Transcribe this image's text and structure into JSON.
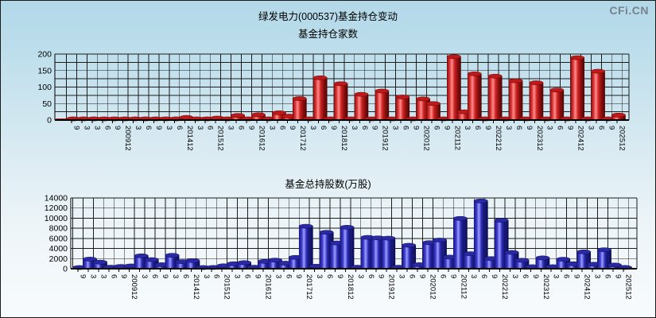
{
  "page": {
    "title": "绿发电力(000537)基金持仓变动",
    "logo": "CFi.CN"
  },
  "colors": {
    "red_bar": "#dd2222",
    "blue_bar": "#3333cc",
    "background_top": "#b2d8e8",
    "logo_gray": "#76838f",
    "grid": "#1c1c1c"
  },
  "x_labels": [
    "9",
    "3",
    "3",
    "6",
    "9",
    "200912",
    "3",
    "6",
    "9",
    "3",
    "6",
    "201412",
    "3",
    "6",
    "201512",
    "3",
    "6",
    "9",
    "201612",
    "3",
    "6",
    "9",
    "201712",
    "3",
    "6",
    "9",
    "201812",
    "3",
    "6",
    "9",
    "201912",
    "3",
    "6",
    "9",
    "202012",
    "6",
    "9",
    "202112",
    "3",
    "6",
    "9",
    "202212",
    "3",
    "6",
    "9",
    "202312",
    "3",
    "6",
    "9",
    "202412",
    "3",
    "6",
    "9",
    "202512"
  ],
  "chart_data": [
    {
      "type": "bar",
      "title": "基金持仓家数",
      "categories": [
        "9",
        "3",
        "3",
        "6",
        "9",
        "200912",
        "3",
        "6",
        "9",
        "3",
        "6",
        "201412",
        "3",
        "6",
        "201512",
        "3",
        "6",
        "9",
        "201612",
        "3",
        "6",
        "9",
        "201712",
        "3",
        "6",
        "9",
        "201812",
        "3",
        "6",
        "9",
        "201912",
        "3",
        "6",
        "9",
        "202012",
        "6",
        "9",
        "202112",
        "3",
        "6",
        "9",
        "202212",
        "3",
        "6",
        "9",
        "202312",
        "3",
        "6",
        "9",
        "202412",
        "3",
        "6",
        "9",
        "202512"
      ],
      "values": [
        1,
        1,
        1,
        1,
        1,
        2,
        1,
        2,
        1,
        1,
        2,
        8,
        1,
        2,
        6,
        1,
        14,
        2,
        16,
        1,
        22,
        12,
        65,
        2,
        128,
        3,
        110,
        2,
        78,
        3,
        88,
        2,
        70,
        2,
        64,
        50,
        2,
        192,
        25,
        140,
        3,
        133,
        3,
        119,
        3,
        113,
        3,
        91,
        3,
        189,
        3,
        148,
        3,
        15
      ],
      "ylim": [
        0,
        200
      ],
      "y_ticks": [
        0,
        50,
        100,
        150,
        200
      ],
      "grid_step": 25,
      "bar_color": "#dd2222",
      "grid": true,
      "legend": "none",
      "xlabel": "",
      "ylabel": ""
    },
    {
      "type": "bar",
      "title": "基金总持股数(万股)",
      "categories": [
        "9",
        "3",
        "3",
        "6",
        "9",
        "200912",
        "3",
        "6",
        "9",
        "3",
        "6",
        "201412",
        "3",
        "6",
        "201512",
        "3",
        "6",
        "9",
        "201612",
        "3",
        "6",
        "9",
        "201712",
        "3",
        "6",
        "9",
        "201812",
        "3",
        "6",
        "9",
        "201912",
        "3",
        "6",
        "9",
        "202012",
        "6",
        "9",
        "202112",
        "3",
        "6",
        "9",
        "202212",
        "3",
        "6",
        "9",
        "202312",
        "3",
        "6",
        "9",
        "202412",
        "3",
        "6",
        "9",
        "202512"
      ],
      "values": [
        100,
        1900,
        1300,
        300,
        450,
        550,
        2550,
        1800,
        800,
        2650,
        1400,
        1600,
        200,
        250,
        580,
        990,
        1200,
        300,
        1450,
        1700,
        1100,
        2240,
        8400,
        500,
        7200,
        5100,
        8200,
        300,
        6200,
        6100,
        6050,
        300,
        4640,
        800,
        5160,
        5670,
        2300,
        9950,
        2970,
        13400,
        2000,
        9580,
        3230,
        1670,
        400,
        2140,
        400,
        1870,
        980,
        3330,
        890,
        3750,
        730,
        250
      ],
      "ylim": [
        0,
        14000
      ],
      "y_ticks": [
        0,
        2000,
        4000,
        6000,
        8000,
        10000,
        12000,
        14000
      ],
      "grid_step": 2000,
      "bar_color": "#3333cc",
      "grid": true,
      "legend": "none",
      "xlabel": "",
      "ylabel": ""
    }
  ]
}
